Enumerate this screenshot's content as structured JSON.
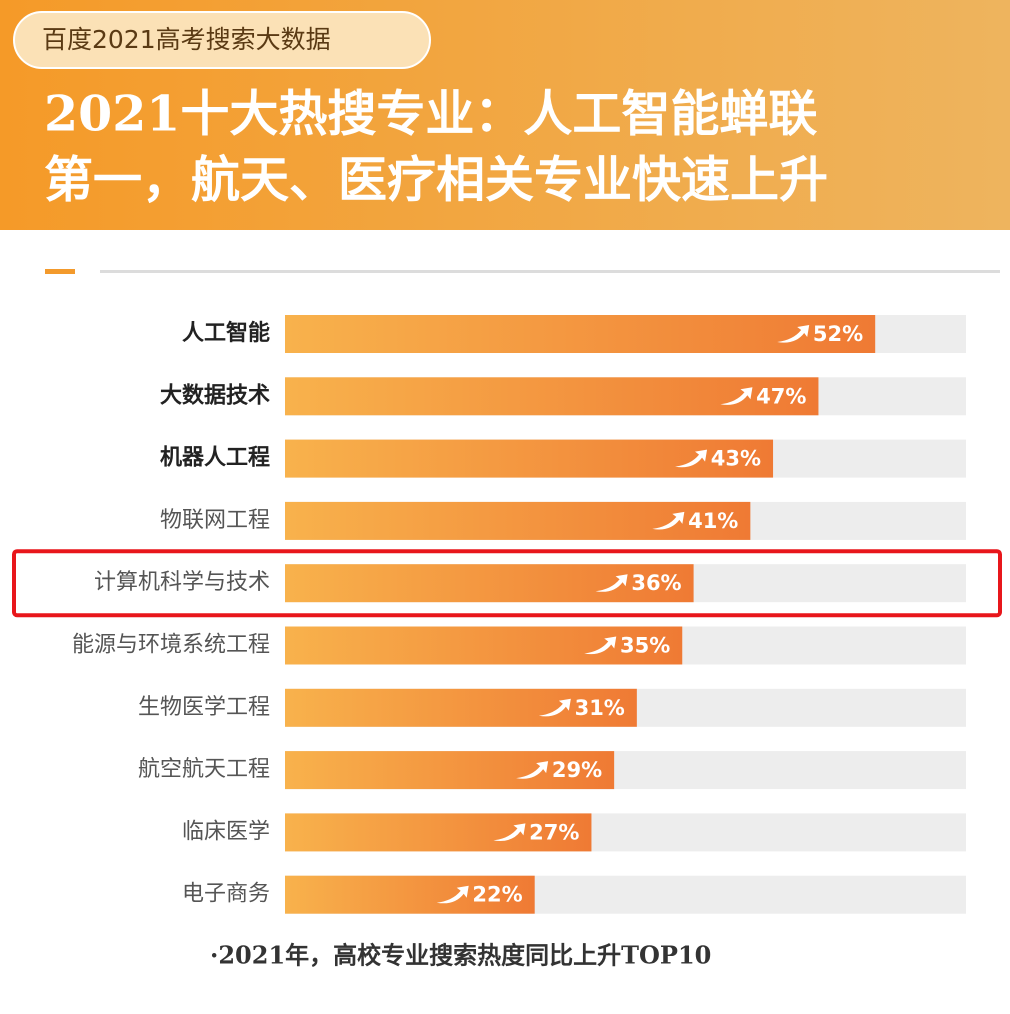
{
  "chart_data": {
    "type": "bar",
    "orientation": "horizontal",
    "badge": "百度2021高考搜索大数据",
    "title": [
      "2021十大热搜专业：人工智能蝉联",
      "第一，航天、医疗相关专业快速上升"
    ],
    "categories": [
      "人工智能",
      "大数据技术",
      "机器人工程",
      "物联网工程",
      "计算机科学与技术",
      "能源与环境系统工程",
      "生物医学工程",
      "航空航天工程",
      "临床医学",
      "电子商务"
    ],
    "values": [
      52,
      47,
      43,
      41,
      36,
      35,
      31,
      29,
      27,
      22
    ],
    "value_labels": [
      "52%",
      "47%",
      "43%",
      "41%",
      "36%",
      "35%",
      "31%",
      "29%",
      "27%",
      "22%"
    ],
    "color": "#f08a38",
    "xlim": [
      0,
      60
    ],
    "note": "·2021年，高校专业搜索热度同比上升TOP10"
  }
}
